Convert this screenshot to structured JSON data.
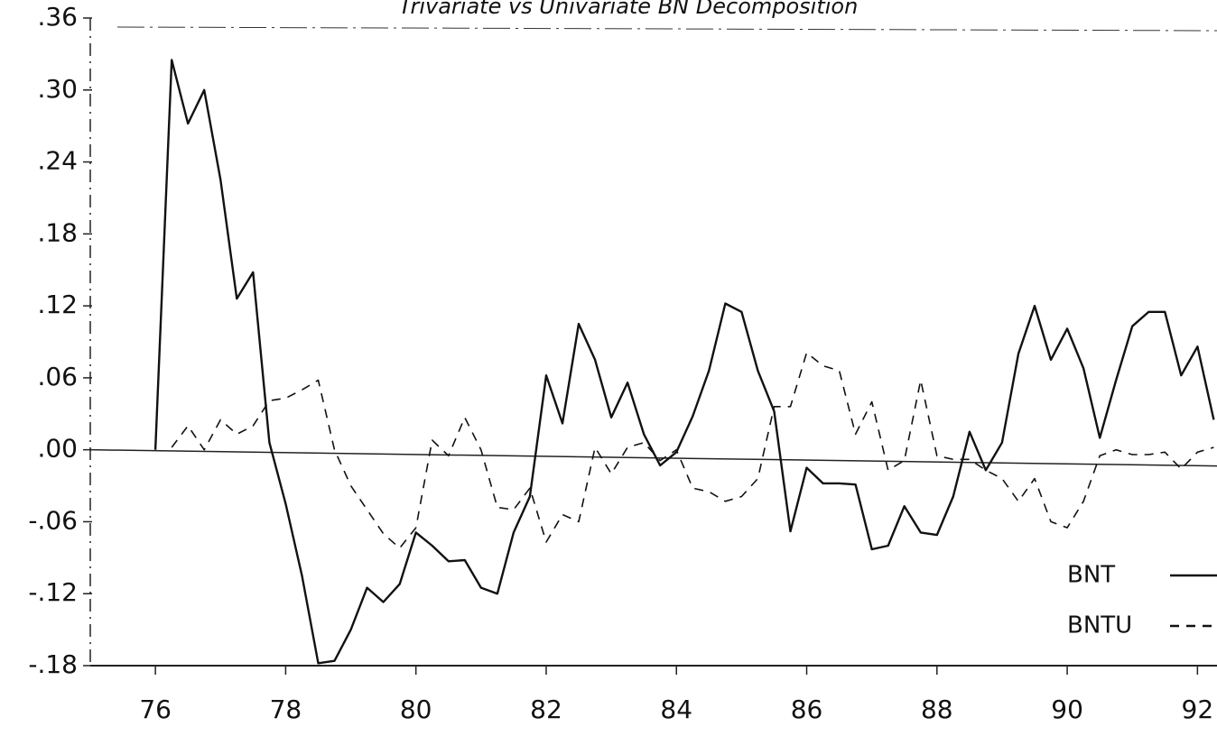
{
  "chart_data": {
    "type": "line",
    "title": "Trivariate vs Univariate BN Decomposition",
    "x": [
      76.0,
      76.25,
      76.5,
      76.75,
      77.0,
      77.25,
      77.5,
      77.75,
      78.0,
      78.25,
      78.5,
      78.75,
      79.0,
      79.25,
      79.5,
      79.75,
      80.0,
      80.25,
      80.5,
      80.75,
      81.0,
      81.25,
      81.5,
      81.75,
      82.0,
      82.25,
      82.5,
      82.75,
      83.0,
      83.25,
      83.5,
      83.75,
      84.0,
      84.25,
      84.5,
      84.75,
      85.0,
      85.25,
      85.5,
      85.75,
      86.0,
      86.25,
      86.5,
      86.75,
      87.0,
      87.25,
      87.5,
      87.75,
      88.0,
      88.25,
      88.5,
      88.75,
      89.0,
      89.25,
      89.5,
      89.75,
      90.0,
      90.25,
      90.5,
      90.75,
      91.0,
      91.25,
      91.5,
      91.75,
      92.0,
      92.25
    ],
    "series": [
      {
        "name": "BNT",
        "color": "#111111",
        "dash": "solid",
        "values": [
          0.0,
          0.325,
          0.272,
          0.3,
          0.225,
          0.126,
          0.148,
          0.006,
          -0.045,
          -0.105,
          -0.178,
          -0.176,
          -0.15,
          -0.115,
          -0.127,
          -0.112,
          -0.069,
          -0.08,
          -0.093,
          -0.092,
          -0.115,
          -0.12,
          -0.069,
          -0.039,
          0.062,
          0.022,
          0.105,
          0.075,
          0.027,
          0.056,
          0.013,
          -0.013,
          -0.002,
          0.028,
          0.066,
          0.122,
          0.115,
          0.066,
          0.032,
          -0.068,
          -0.015,
          -0.028,
          -0.028,
          -0.029,
          -0.083,
          -0.08,
          -0.047,
          -0.069,
          -0.071,
          -0.039,
          0.015,
          -0.017,
          0.006,
          0.08,
          0.12,
          0.075,
          0.101,
          0.068,
          0.01,
          0.058,
          0.103,
          0.115,
          0.115,
          0.062,
          0.086,
          0.025
        ]
      },
      {
        "name": "BNTU",
        "color": "#111111",
        "dash": "dashed",
        "values": [
          null,
          0.002,
          0.02,
          0.0,
          0.025,
          0.013,
          0.02,
          0.041,
          0.043,
          0.05,
          0.058,
          0.0,
          -0.03,
          -0.05,
          -0.07,
          -0.082,
          -0.065,
          0.008,
          -0.005,
          0.027,
          0.0,
          -0.048,
          -0.05,
          -0.032,
          -0.077,
          -0.054,
          -0.06,
          0.002,
          -0.02,
          0.002,
          0.006,
          -0.009,
          0.0,
          -0.032,
          -0.035,
          -0.043,
          -0.039,
          -0.024,
          0.036,
          0.036,
          0.081,
          0.07,
          0.066,
          0.013,
          0.04,
          -0.017,
          -0.009,
          0.058,
          -0.005,
          -0.008,
          -0.008,
          -0.017,
          -0.024,
          -0.043,
          -0.024,
          -0.06,
          -0.065,
          -0.043,
          -0.005,
          0.0,
          -0.004,
          -0.004,
          -0.002,
          -0.016,
          -0.002,
          0.002
        ]
      }
    ],
    "xlim": [
      75.0,
      92.3
    ],
    "xticks": [
      76,
      78,
      80,
      82,
      84,
      86,
      88,
      90,
      92
    ],
    "ylim": [
      -0.18,
      0.36
    ],
    "yticks": [
      {
        "value": 0.36,
        "label": ".36"
      },
      {
        "value": 0.3,
        "label": ".30"
      },
      {
        "value": 0.24,
        "label": ".24"
      },
      {
        "value": 0.18,
        "label": ".18"
      },
      {
        "value": 0.12,
        "label": ".12"
      },
      {
        "value": 0.06,
        "label": ".06"
      },
      {
        "value": 0.0,
        "label": ".00"
      },
      {
        "value": -0.06,
        "label": "-.06"
      },
      {
        "value": -0.12,
        "label": "-.12"
      },
      {
        "value": -0.18,
        "label": "-.18"
      }
    ],
    "legend": "lower right"
  }
}
